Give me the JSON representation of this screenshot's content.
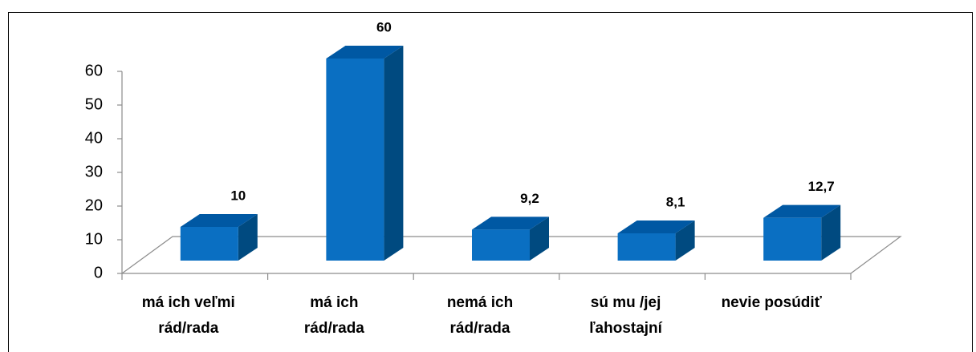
{
  "chart_data": {
    "type": "bar3d",
    "categories": [
      "má ich veľmi\nrád/rada",
      "má ich\nrád/rada",
      "nemá ich\nrád/rada",
      "sú mu /jej\nľahostajní",
      "nevie posúdiť"
    ],
    "values": [
      10,
      60,
      9.2,
      8.1,
      12.7
    ],
    "value_labels": [
      "10",
      "60",
      "9,2",
      "8,1",
      "12,7"
    ],
    "color": "#0a6fc2",
    "ylim": [
      0,
      60
    ],
    "yticks": [
      0,
      10,
      20,
      30,
      40,
      50,
      60
    ]
  }
}
